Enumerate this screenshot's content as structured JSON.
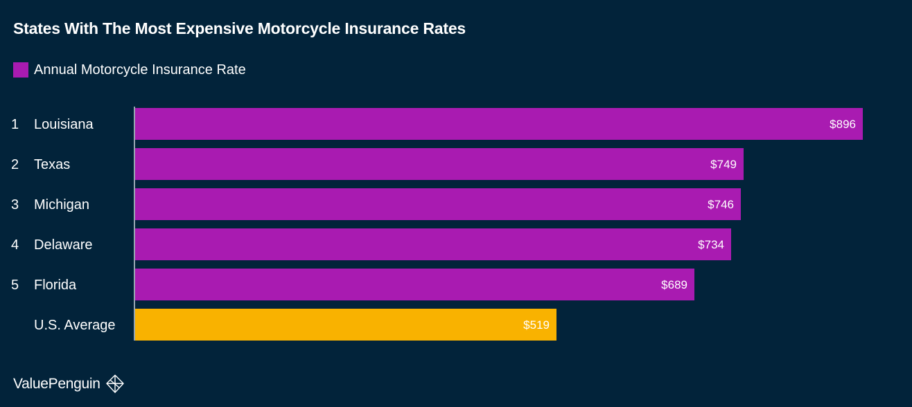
{
  "chart_data": {
    "type": "bar",
    "orientation": "horizontal",
    "title": "States With The Most Expensive Motorcycle Insurance Rates",
    "ranks": [
      "1",
      "2",
      "3",
      "4",
      "5",
      ""
    ],
    "categories": [
      "Louisiana",
      "Texas",
      "Michigan",
      "Delaware",
      "Florida",
      "U.S. Average"
    ],
    "values": [
      896,
      749,
      746,
      734,
      689,
      519
    ],
    "value_labels": [
      "$896",
      "$749",
      "$746",
      "$734",
      "$689",
      "$519"
    ],
    "highlight_index": 5,
    "series": [
      {
        "name": "Annual Motorcycle Insurance Rate",
        "color": "#a91bb1"
      }
    ],
    "highlight_color": "#f9b200",
    "legend_position": "top-left",
    "grid": false,
    "xlim": [
      0,
      896
    ]
  },
  "brand": {
    "name": "ValuePenguin",
    "icon": "valuepenguin-logo-icon"
  }
}
